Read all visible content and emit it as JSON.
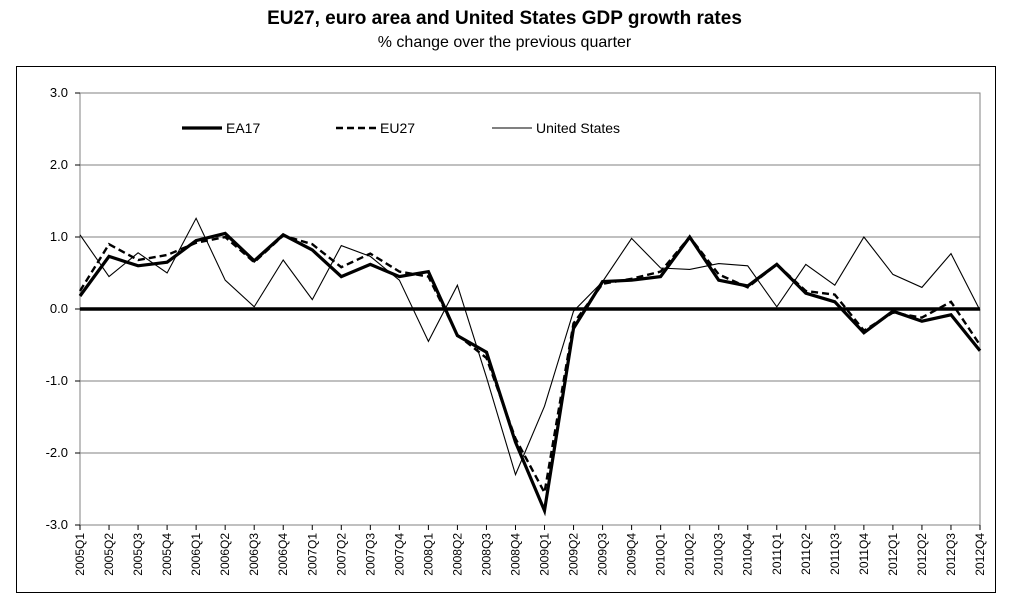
{
  "header": {
    "title": "EU27, euro area and United States GDP growth rates",
    "subtitle": "% change over the previous quarter"
  },
  "chart_data": {
    "type": "line",
    "title": "EU27, euro area and United States GDP growth rates",
    "subtitle": "% change over the previous quarter",
    "xlabel": "",
    "ylabel": "",
    "ylim": [
      -3.0,
      3.0
    ],
    "yticks": [
      "3.0",
      "2.0",
      "1.0",
      "0.0",
      "-1.0",
      "-2.0",
      "-3.0"
    ],
    "grid": true,
    "legend_position": "top",
    "categories": [
      "2005Q1",
      "2005Q2",
      "2005Q3",
      "2005Q4",
      "2006Q1",
      "2006Q2",
      "2006Q3",
      "2006Q4",
      "2007Q1",
      "2007Q2",
      "2007Q3",
      "2007Q4",
      "2008Q1",
      "2008Q2",
      "2008Q3",
      "2008Q4",
      "2009Q1",
      "2009Q2",
      "2009Q3",
      "2009Q4",
      "2010Q1",
      "2010Q2",
      "2010Q3",
      "2010Q4",
      "2011Q1",
      "2011Q2",
      "2011Q3",
      "2011Q4",
      "2012Q1",
      "2012Q2",
      "2012Q3",
      "2012Q4"
    ],
    "series": [
      {
        "name": "EA17",
        "style": "thick-solid",
        "color": "#000000",
        "values": [
          0.18,
          0.73,
          0.6,
          0.65,
          0.95,
          1.05,
          0.67,
          1.03,
          0.82,
          0.45,
          0.62,
          0.45,
          0.52,
          -0.37,
          -0.6,
          -1.85,
          -2.8,
          -0.27,
          0.38,
          0.4,
          0.45,
          1.0,
          0.4,
          0.32,
          0.62,
          0.22,
          0.1,
          -0.33,
          -0.03,
          -0.17,
          -0.08,
          -0.58
        ]
      },
      {
        "name": "EU27",
        "style": "dashed",
        "color": "#000000",
        "values": [
          0.25,
          0.9,
          0.68,
          0.75,
          0.92,
          1.0,
          0.65,
          1.02,
          0.9,
          0.58,
          0.77,
          0.52,
          0.45,
          -0.36,
          -0.68,
          -1.8,
          -2.55,
          -0.2,
          0.35,
          0.42,
          0.52,
          1.0,
          0.48,
          0.3,
          0.62,
          0.25,
          0.2,
          -0.3,
          -0.05,
          -0.12,
          0.1,
          -0.5
        ]
      },
      {
        "name": "United States",
        "style": "thin-solid",
        "color": "#000000",
        "values": [
          1.03,
          0.45,
          0.78,
          0.5,
          1.26,
          0.4,
          0.03,
          0.68,
          0.13,
          0.88,
          0.73,
          0.4,
          -0.45,
          0.33,
          -0.95,
          -2.3,
          -1.35,
          -0.03,
          0.38,
          0.98,
          0.57,
          0.55,
          0.63,
          0.6,
          0.03,
          0.62,
          0.33,
          1.0,
          0.48,
          0.3,
          0.77,
          -0.02
        ]
      }
    ]
  }
}
